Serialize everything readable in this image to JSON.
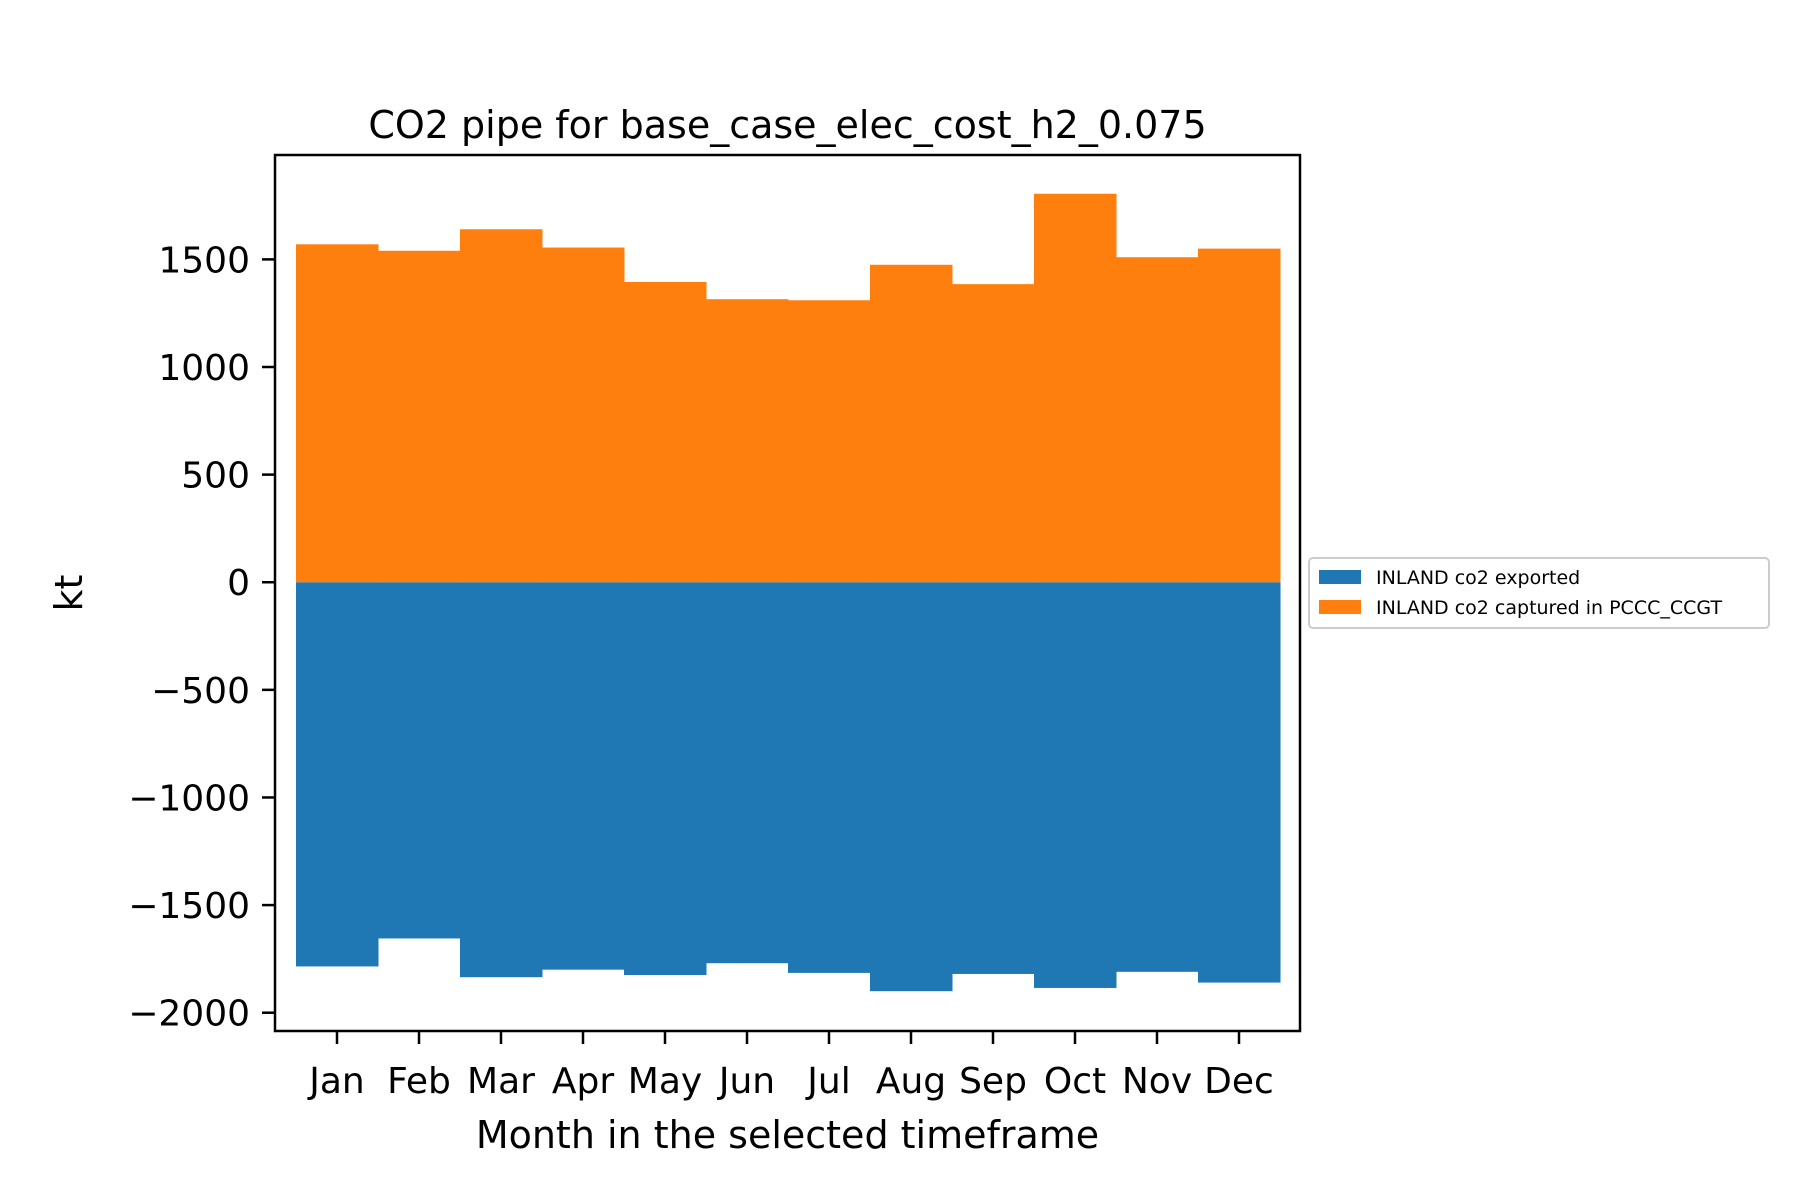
{
  "chart_data": {
    "type": "bar",
    "stacked": true,
    "title": "CO2 pipe for base_case_elec_cost_h2_0.075",
    "xlabel": "Month in the selected timeframe",
    "ylabel": "kt",
    "categories": [
      "Jan",
      "Feb",
      "Mar",
      "Apr",
      "May",
      "Jun",
      "Jul",
      "Aug",
      "Sep",
      "Oct",
      "Nov",
      "Dec"
    ],
    "series": [
      {
        "name": "INLAND co2 exported",
        "color": "#1f77b4",
        "values": [
          -1785,
          -1655,
          -1835,
          -1800,
          -1825,
          -1770,
          -1815,
          -1900,
          -1820,
          -1885,
          -1810,
          -1860
        ]
      },
      {
        "name": "INLAND co2 captured in PCCC_CCGT",
        "color": "#ff7f0e",
        "values": [
          1570,
          1540,
          1640,
          1555,
          1395,
          1315,
          1310,
          1475,
          1385,
          1805,
          1510,
          1550
        ]
      }
    ],
    "ylim": [
      -2085,
      1985
    ],
    "yticks": [
      -2000,
      -1500,
      -1000,
      -500,
      0,
      500,
      1000,
      1500
    ],
    "ytick_labels": [
      "−2000",
      "−1500",
      "−1000",
      "−500",
      "0",
      "500",
      "1000",
      "1500"
    ],
    "grid": false,
    "legend_position": "center-right-outside"
  }
}
